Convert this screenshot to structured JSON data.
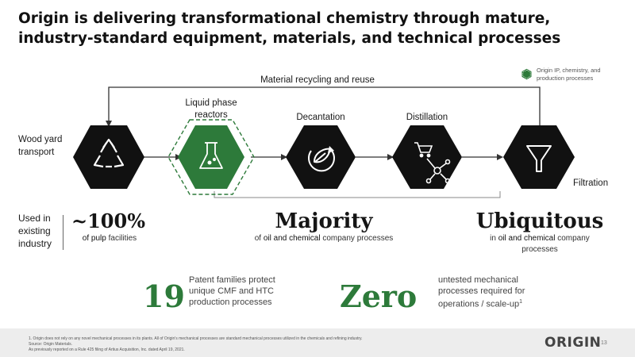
{
  "title": "Origin is delivering transformational chemistry through mature, industry-standard equipment, materials, and technical processes",
  "legend": {
    "text": "Origin IP, chemistry, and production processes",
    "color": "#2d7a3a"
  },
  "diagram": {
    "recycle_label": "Material recycling and reuse",
    "steps": [
      {
        "label": "Wood yard transport",
        "icon": "recycle-icon"
      },
      {
        "label": "Liquid phase reactors",
        "icon": "flask-icon",
        "highlight": true
      },
      {
        "label": "Decantation",
        "icon": "leaf-cycle-icon"
      },
      {
        "label": "Distillation",
        "icon": "molecule-cart-icon"
      },
      {
        "label": "Filtration",
        "icon": "funnel-icon"
      }
    ]
  },
  "used_label": "Used in existing industry",
  "stats": [
    {
      "big": "~100%",
      "pre": "",
      "hl": "of pulp",
      "post": " facilities"
    },
    {
      "big": "Majority",
      "pre": "of ",
      "hl": "oil and chemical",
      "post": " company processes"
    },
    {
      "big": "Ubiquitous",
      "pre": "in ",
      "hl": "oil and chemical",
      "post": " company processes"
    }
  ],
  "highlights": [
    {
      "number": "19",
      "text": "Patent families protect unique CMF and HTC production processes"
    },
    {
      "number": "Zero",
      "text": "untested mechanical processes required for operations / scale-up",
      "sup": "1"
    }
  ],
  "footer": {
    "lines": [
      "1. Origin does not rely on any novel mechanical processes in its plants. All of Origin's mechanical processes are standard mechanical processes utilized in the chemicals and refining industry.",
      "Source: Origin Materials.",
      "As previously reported on a Rule 425 filing of Artius Acquisition, Inc. dated April 19, 2021."
    ],
    "logo": "ORIGIN",
    "page": "13"
  }
}
